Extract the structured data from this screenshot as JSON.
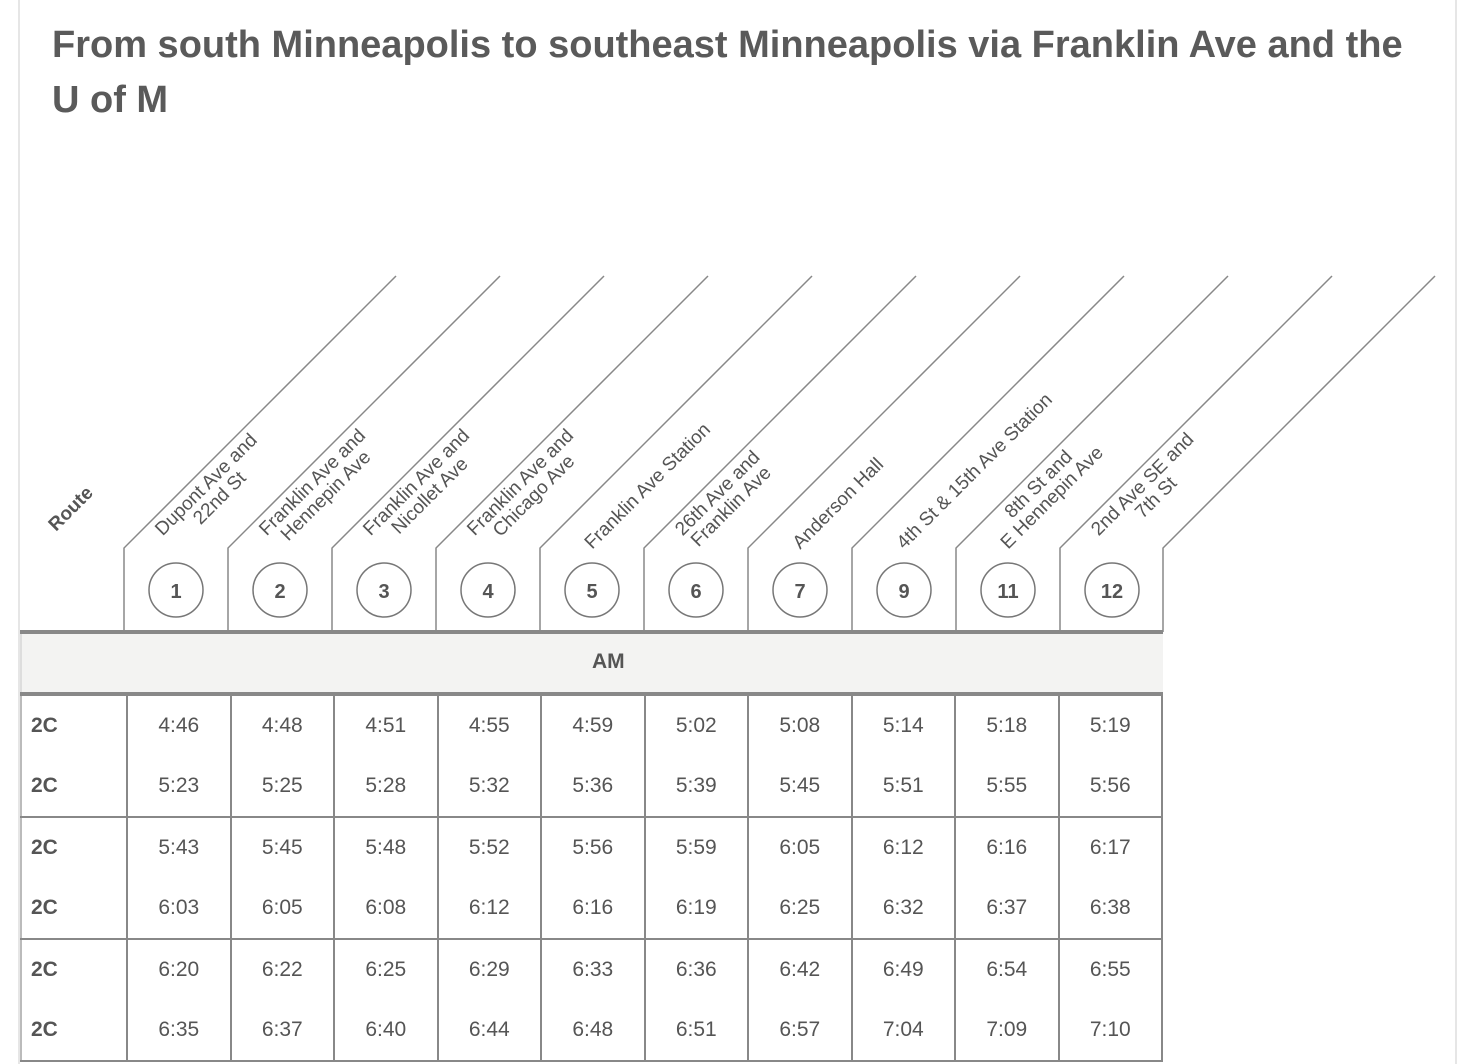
{
  "title": "From south Minneapolis to southeast Minneapolis via Franklin Ave and the U of M",
  "route_header": "Route",
  "stops": [
    {
      "num": "1",
      "lines": [
        "Dupont Ave and",
        "22nd St"
      ]
    },
    {
      "num": "2",
      "lines": [
        "Franklin Ave and",
        "Hennepin Ave"
      ]
    },
    {
      "num": "3",
      "lines": [
        "Franklin Ave and",
        "Nicollet Ave"
      ]
    },
    {
      "num": "4",
      "lines": [
        "Franklin Ave and",
        "Chicago Ave"
      ]
    },
    {
      "num": "5",
      "lines": [
        "Franklin Ave Station"
      ]
    },
    {
      "num": "6",
      "lines": [
        "26th Ave and",
        "Franklin Ave"
      ]
    },
    {
      "num": "7",
      "lines": [
        "Anderson Hall"
      ]
    },
    {
      "num": "9",
      "lines": [
        "4th St & 15th Ave Station"
      ]
    },
    {
      "num": "11",
      "lines": [
        "8th St and",
        "E Hennepin Ave"
      ]
    },
    {
      "num": "12",
      "lines": [
        "2nd Ave SE and",
        "7th St"
      ]
    }
  ],
  "period": "AM",
  "rows": [
    {
      "route": "2C",
      "times": [
        "4:46",
        "4:48",
        "4:51",
        "4:55",
        "4:59",
        "5:02",
        "5:08",
        "5:14",
        "5:18",
        "5:19"
      ]
    },
    {
      "route": "2C",
      "times": [
        "5:23",
        "5:25",
        "5:28",
        "5:32",
        "5:36",
        "5:39",
        "5:45",
        "5:51",
        "5:55",
        "5:56"
      ]
    },
    {
      "route": "2C",
      "times": [
        "5:43",
        "5:45",
        "5:48",
        "5:52",
        "5:56",
        "5:59",
        "6:05",
        "6:12",
        "6:16",
        "6:17"
      ]
    },
    {
      "route": "2C",
      "times": [
        "6:03",
        "6:05",
        "6:08",
        "6:12",
        "6:16",
        "6:19",
        "6:25",
        "6:32",
        "6:37",
        "6:38"
      ]
    },
    {
      "route": "2C",
      "times": [
        "6:20",
        "6:22",
        "6:25",
        "6:29",
        "6:33",
        "6:36",
        "6:42",
        "6:49",
        "6:54",
        "6:55"
      ]
    },
    {
      "route": "2C",
      "times": [
        "6:35",
        "6:37",
        "6:40",
        "6:44",
        "6:48",
        "6:51",
        "6:57",
        "7:04",
        "7:09",
        "7:10"
      ]
    }
  ],
  "colors": {
    "text": "#555555",
    "rule": "#888888",
    "band": "#f3f3f2"
  }
}
